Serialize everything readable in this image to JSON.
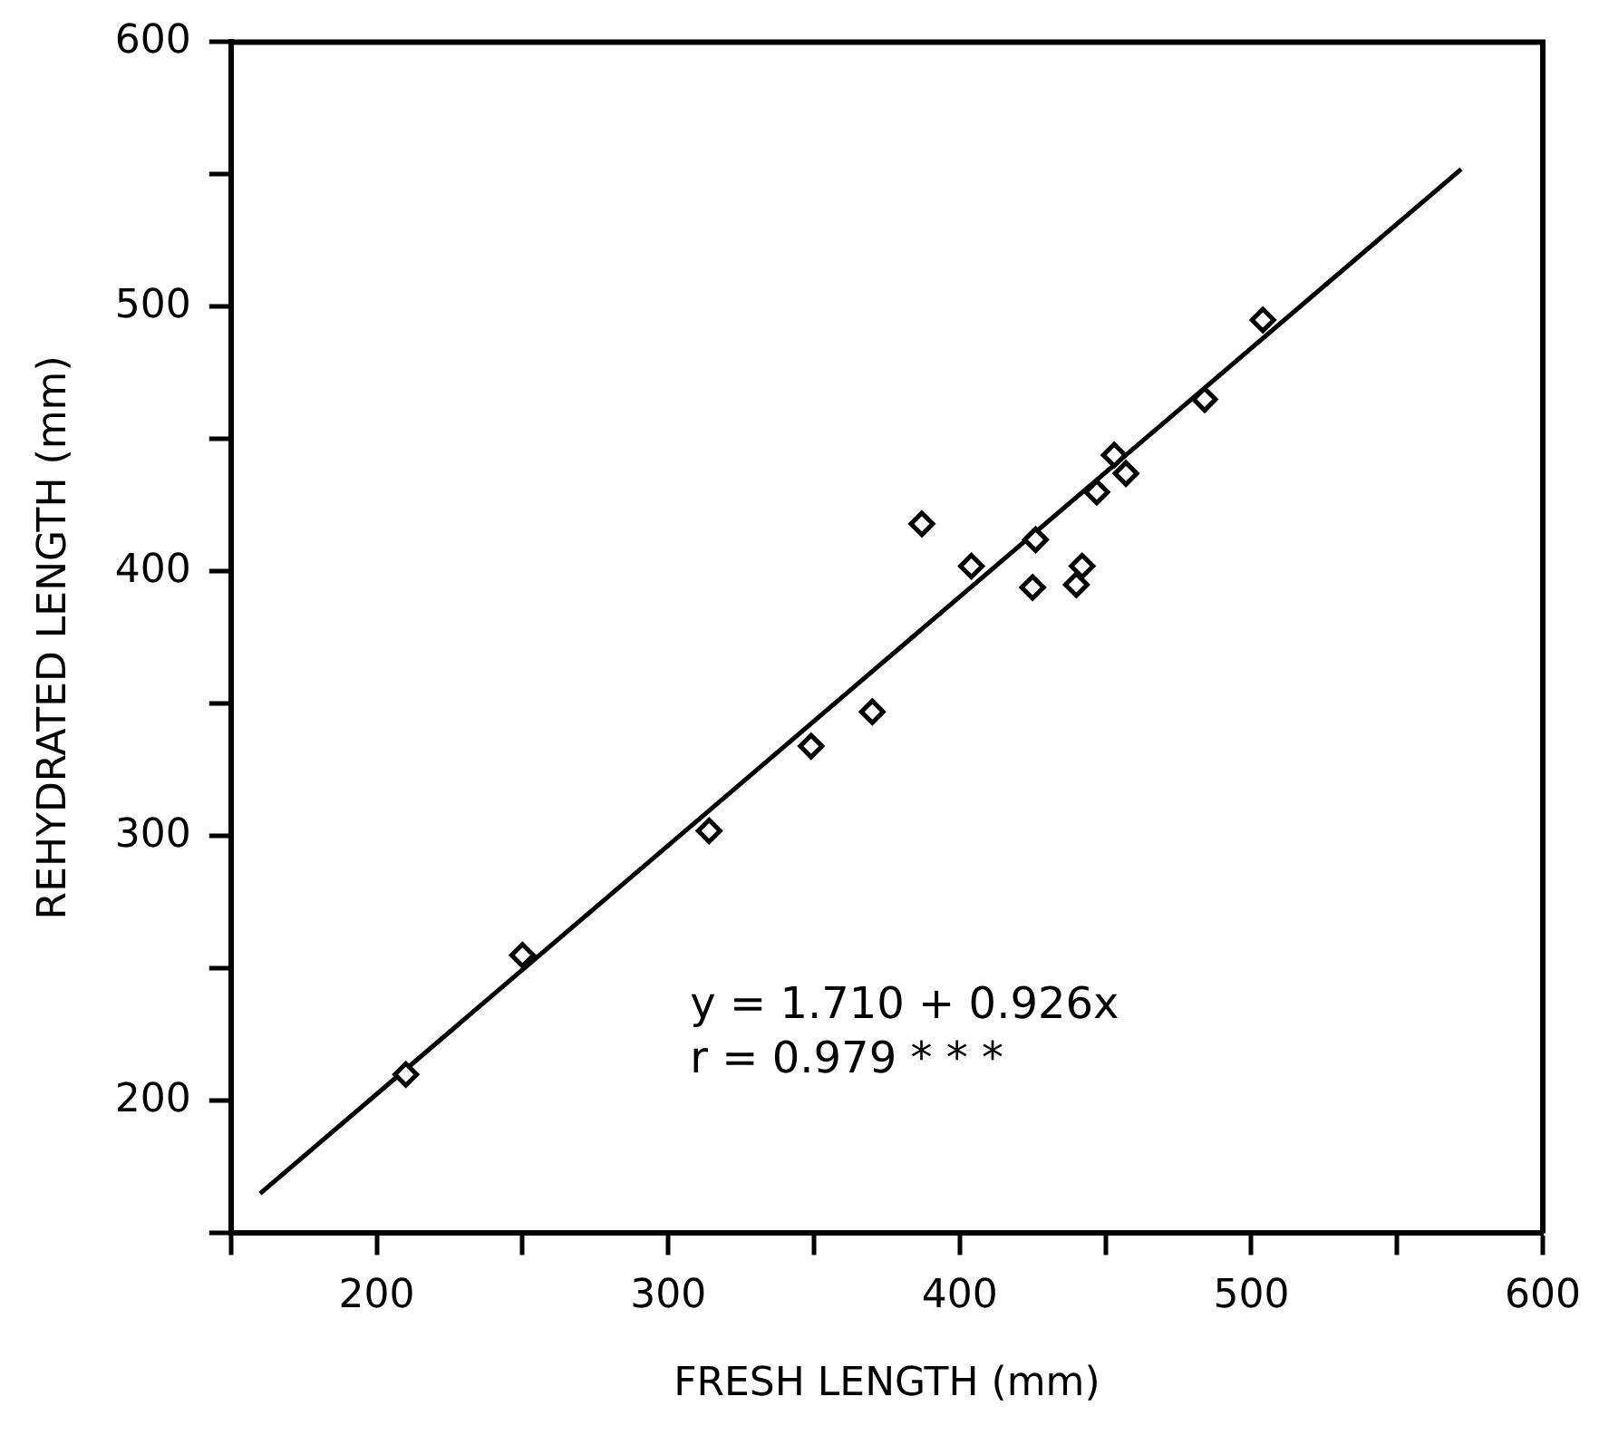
{
  "chart_data": {
    "type": "scatter",
    "xlabel": "FRESH LENGTH (mm)",
    "ylabel": "REHYDRATED LENGTH (mm)",
    "annotations": [
      "y = 1.710 + 0.926x",
      "r = 0.979 * * *"
    ],
    "series": [
      {
        "color": "#000000",
        "marker": "diamond",
        "x": [
          210,
          250,
          314,
          349,
          370,
          387,
          404,
          425,
          426,
          440,
          442,
          447,
          453,
          457,
          484,
          504
        ],
        "values": [
          210,
          255,
          302,
          334,
          347,
          418,
          402,
          394,
          412,
          395,
          402,
          430,
          444,
          437,
          465,
          495
        ]
      },
      {
        "type": "line",
        "color": "#000000",
        "marker": "none",
        "line_style": "solid",
        "x": [
          160,
          572
        ],
        "values": [
          165,
          552
        ]
      }
    ],
    "xlim": [
      150,
      600
    ],
    "ylim": [
      150,
      600
    ],
    "xticks": [
      {
        "value": 150,
        "label": null
      },
      200,
      {
        "value": 250,
        "label": null
      },
      300,
      {
        "value": 350,
        "label": null
      },
      400,
      {
        "value": 450,
        "label": null
      },
      500,
      {
        "value": 550,
        "label": null
      },
      600
    ],
    "yticks": [
      {
        "value": 150,
        "label": null
      },
      200,
      {
        "value": 250,
        "label": null
      },
      300,
      {
        "value": 350,
        "label": null
      },
      400,
      {
        "value": 450,
        "label": null
      },
      500,
      {
        "value": 550,
        "label": null
      },
      600
    ],
    "grid": false,
    "legend": false
  }
}
